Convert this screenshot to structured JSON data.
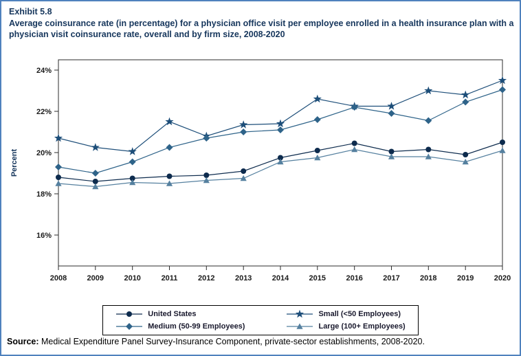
{
  "exhibit": "Exhibit 5.8",
  "title": "Average coinsurance rate (in percentage) for a physician office visit per employee enrolled in a health insurance plan with a physician visit coinsurance rate, overall and by firm size, 2008-2020",
  "source": {
    "label": "Source:",
    "text": " Medical Expenditure Panel Survey-Insurance Component, private-sector establishments, 2008-2020."
  },
  "chart_data": {
    "type": "line",
    "ylabel": "Percent",
    "ylim": [
      14.5,
      24.5
    ],
    "yticks": [
      16,
      18,
      20,
      22,
      24
    ],
    "x": [
      2008,
      2009,
      2010,
      2011,
      2012,
      2013,
      2014,
      2015,
      2016,
      2017,
      2018,
      2019,
      2020
    ],
    "legend_position": "bottom",
    "grid": false,
    "series": [
      {
        "name": "United States",
        "marker": "circle",
        "color": "#0d2b4d",
        "values": [
          18.8,
          18.6,
          18.75,
          18.85,
          18.9,
          19.1,
          19.75,
          20.1,
          20.45,
          20.05,
          20.15,
          19.9,
          20.5
        ]
      },
      {
        "name": "Small (<50 Employees)",
        "marker": "star",
        "color": "#1d4e79",
        "values": [
          20.7,
          20.25,
          20.05,
          21.5,
          20.8,
          21.35,
          21.4,
          22.6,
          22.25,
          22.25,
          23.0,
          22.8,
          23.5
        ]
      },
      {
        "name": "Medium (50-99 Employees)",
        "marker": "diamond",
        "color": "#2e6389",
        "values": [
          19.3,
          19.0,
          19.55,
          20.25,
          20.7,
          21.0,
          21.1,
          21.6,
          22.2,
          21.9,
          21.55,
          22.45,
          23.05
        ]
      },
      {
        "name": "Large (100+ Employees)",
        "marker": "triangle",
        "color": "#55809f",
        "values": [
          18.5,
          18.35,
          18.55,
          18.5,
          18.65,
          18.75,
          19.55,
          19.75,
          20.15,
          19.8,
          19.8,
          19.55,
          20.1
        ]
      }
    ]
  }
}
